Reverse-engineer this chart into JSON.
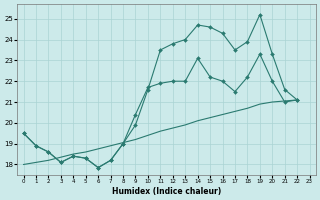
{
  "xlabel": "Humidex (Indice chaleur)",
  "bg_color": "#cceaea",
  "grid_color": "#aad4d4",
  "line_color": "#2a7a70",
  "xlim": [
    -0.5,
    23.5
  ],
  "ylim": [
    17.5,
    25.7
  ],
  "x_ticks": [
    0,
    1,
    2,
    3,
    4,
    5,
    6,
    7,
    8,
    9,
    10,
    11,
    12,
    13,
    14,
    15,
    16,
    17,
    18,
    19,
    20,
    21,
    22,
    23
  ],
  "y_ticks": [
    18,
    19,
    20,
    21,
    22,
    23,
    24,
    25
  ],
  "line1_x": [
    0,
    1,
    2,
    3,
    4,
    5,
    6,
    7,
    8,
    9,
    10,
    11,
    12,
    13,
    14,
    15,
    16,
    17,
    18,
    19,
    20,
    21,
    22
  ],
  "line1_y": [
    19.5,
    18.9,
    18.6,
    18.1,
    18.4,
    18.3,
    17.85,
    18.2,
    19.0,
    19.9,
    21.6,
    23.5,
    23.8,
    24.0,
    24.7,
    24.6,
    24.3,
    23.5,
    23.9,
    25.2,
    23.3,
    21.6,
    21.1
  ],
  "line2_x": [
    0,
    1,
    2,
    3,
    4,
    5,
    6,
    7,
    8,
    9,
    10,
    11,
    12,
    13,
    14,
    15,
    16,
    17,
    18,
    19,
    20,
    21,
    22
  ],
  "line2_y": [
    19.5,
    18.9,
    18.6,
    18.1,
    18.4,
    18.3,
    17.85,
    18.2,
    19.0,
    20.4,
    21.7,
    21.9,
    22.0,
    22.0,
    23.1,
    22.2,
    22.0,
    21.5,
    22.2,
    23.3,
    22.0,
    21.0,
    21.1
  ],
  "line3_x": [
    0,
    1,
    2,
    3,
    4,
    5,
    6,
    7,
    8,
    9,
    10,
    11,
    12,
    13,
    14,
    15,
    16,
    17,
    18,
    19,
    20,
    21,
    22
  ],
  "line3_y": [
    18.0,
    18.1,
    18.2,
    18.35,
    18.5,
    18.6,
    18.75,
    18.9,
    19.05,
    19.2,
    19.4,
    19.6,
    19.75,
    19.9,
    20.1,
    20.25,
    20.4,
    20.55,
    20.7,
    20.9,
    21.0,
    21.05,
    21.1
  ]
}
